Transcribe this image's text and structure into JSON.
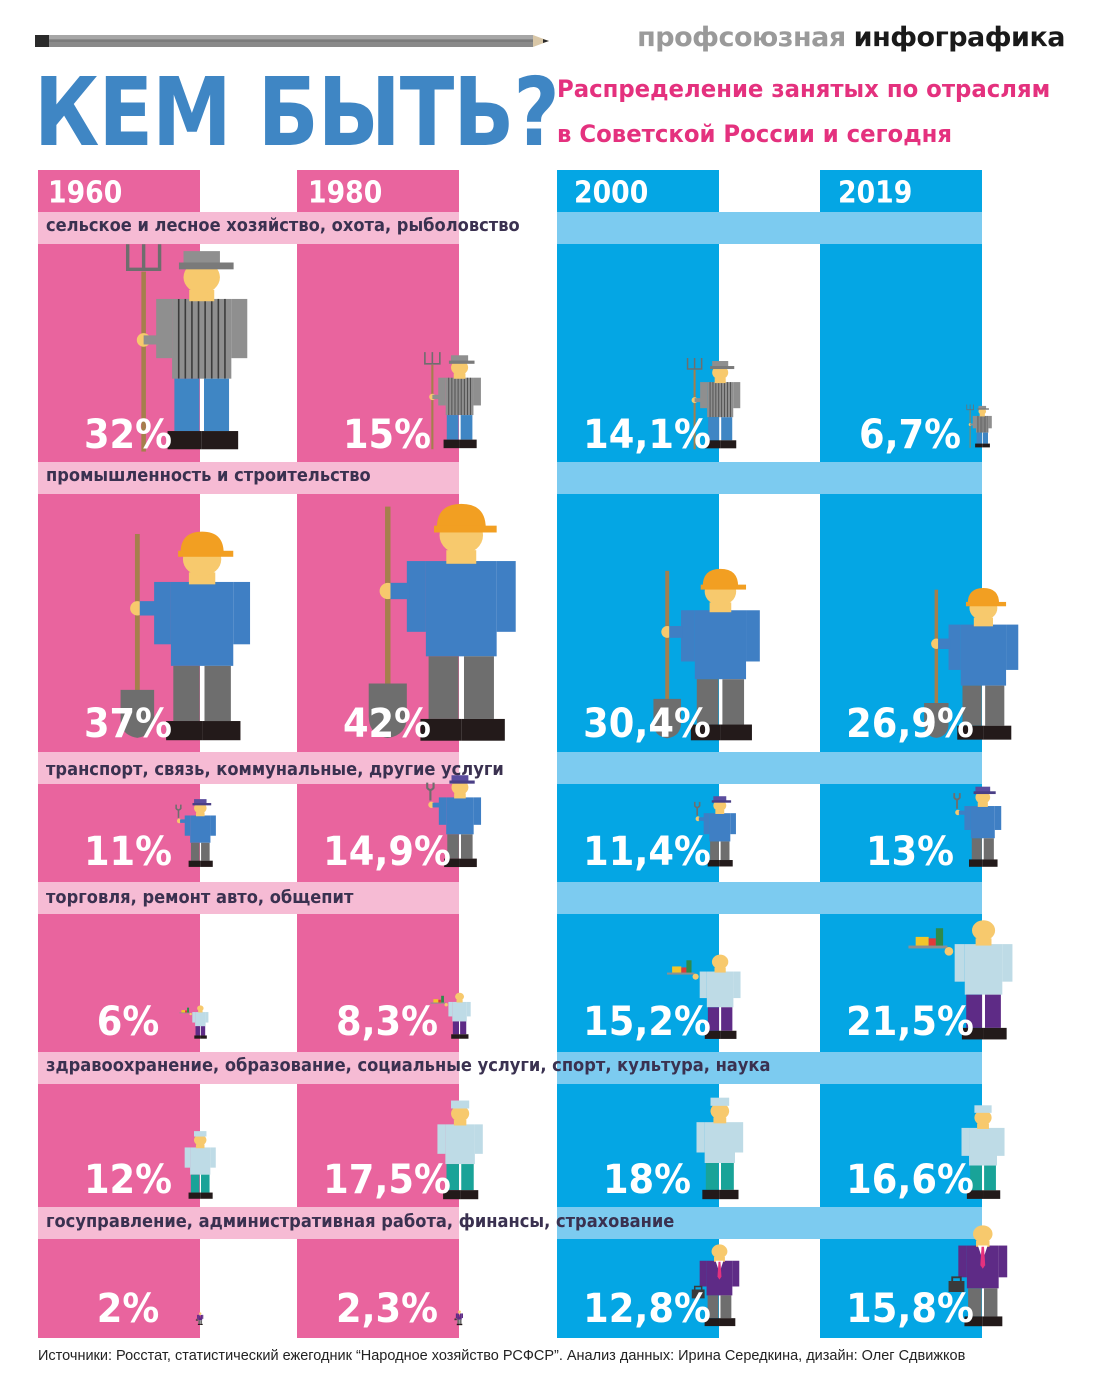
{
  "header": {
    "brand_left": "профсоюзная",
    "brand_right": "инфографика",
    "title": "КЕМ БЫТЬ?",
    "subtitle_line1": "Распределение занятых по отраслям",
    "subtitle_line2": "в Советской России и сегодня"
  },
  "colors": {
    "soviet": "#e9649e",
    "soviet_band": "#f6bbd4",
    "today": "#04a6e4",
    "today_band": "#7ccbf0",
    "title_blue": "#3f86c4",
    "subtitle_pink": "#e4317e"
  },
  "icons": [
    "pitchfork-farmer-icon",
    "shovel-builder-icon",
    "wrench-worker-icon",
    "waiter-tray-icon",
    "doctor-icon",
    "official-briefcase-icon"
  ],
  "chart_data": {
    "type": "table",
    "years": [
      "1960",
      "1980",
      "2000",
      "2019"
    ],
    "sectors": [
      {
        "name": "сельское и лесное хозяйство, охота, рыболовство",
        "icon": "pitchfork-farmer-icon",
        "values": [
          "32%",
          "15%",
          "14,1%",
          "6,7%"
        ],
        "numeric": [
          32,
          15,
          14.1,
          6.7
        ]
      },
      {
        "name": "промышленность и строительство",
        "icon": "shovel-builder-icon",
        "values": [
          "37%",
          "42%",
          "30,4%",
          "26,9%"
        ],
        "numeric": [
          37,
          42,
          30.4,
          26.9
        ]
      },
      {
        "name": "транспорт, связь, коммунальные, другие услуги",
        "icon": "wrench-worker-icon",
        "values": [
          "11%",
          "14,9%",
          "11,4%",
          "13%"
        ],
        "numeric": [
          11,
          14.9,
          11.4,
          13
        ]
      },
      {
        "name": "торговля, ремонт авто, общепит",
        "icon": "waiter-tray-icon",
        "values": [
          "6%",
          "8,3%",
          "15,2%",
          "21,5%"
        ],
        "numeric": [
          6,
          8.3,
          15.2,
          21.5
        ]
      },
      {
        "name": "здравоохранение, образование, социальные услуги, спорт, культура, наука",
        "icon": "doctor-icon",
        "values": [
          "12%",
          "17,5%",
          "18%",
          "16,6%"
        ],
        "numeric": [
          12,
          17.5,
          18,
          16.6
        ]
      },
      {
        "name": "госуправление, административная работа, финансы, страхование",
        "icon": "official-briefcase-icon",
        "values": [
          "2%",
          "2,3%",
          "12,8%",
          "15,8%"
        ],
        "numeric": [
          2,
          2.3,
          12.8,
          15.8
        ]
      }
    ]
  },
  "footer": {
    "source": "Источники: Росстат, статистический ежегодник “Народное хозяйство РСФСР”. Анализ данных: Ирина Середкина, дизайн: Олег Сдвижков"
  }
}
